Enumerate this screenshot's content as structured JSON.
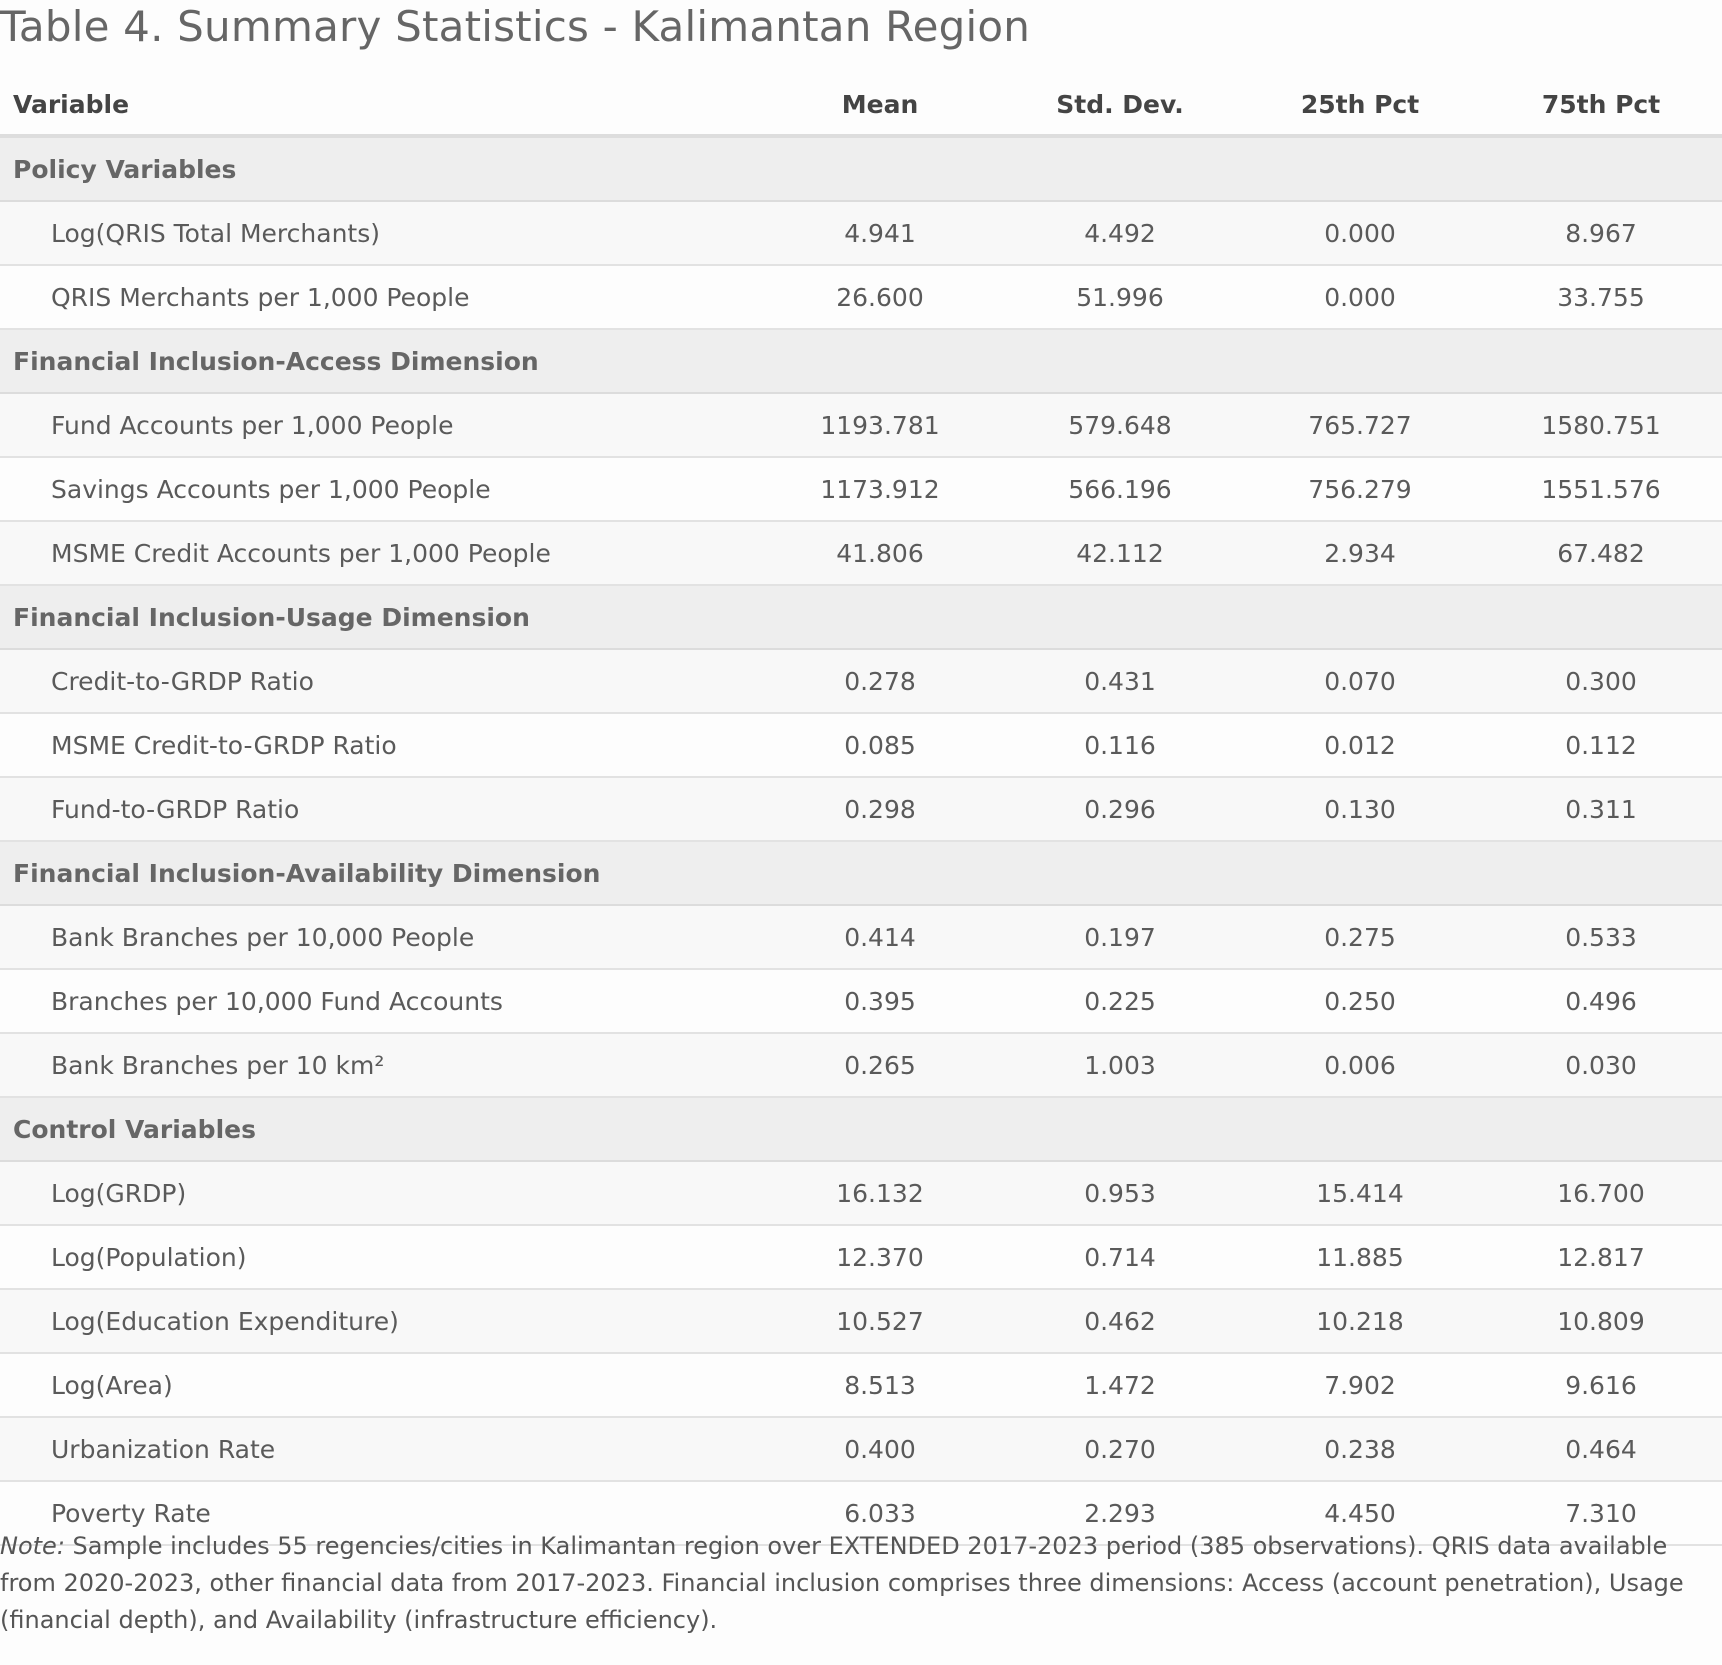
{
  "title": "Table 4. Summary Statistics - Kalimantan Region",
  "columns": [
    "Variable",
    "Mean",
    "Std. Dev.",
    "25th Pct",
    "75th Pct"
  ],
  "sections": [
    {
      "label": "Policy Variables",
      "rows": [
        {
          "name": "Log(QRIS Total Merchants)",
          "mean": "4.941",
          "sd": "4.492",
          "p25": "0.000",
          "p75": "8.967"
        },
        {
          "name": "QRIS Merchants per 1,000 People",
          "mean": "26.600",
          "sd": "51.996",
          "p25": "0.000",
          "p75": "33.755"
        }
      ]
    },
    {
      "label": "Financial Inclusion-Access Dimension",
      "rows": [
        {
          "name": "Fund Accounts per 1,000 People",
          "mean": "1193.781",
          "sd": "579.648",
          "p25": "765.727",
          "p75": "1580.751"
        },
        {
          "name": "Savings Accounts per 1,000 People",
          "mean": "1173.912",
          "sd": "566.196",
          "p25": "756.279",
          "p75": "1551.576"
        },
        {
          "name": "MSME Credit Accounts per 1,000 People",
          "mean": "41.806",
          "sd": "42.112",
          "p25": "2.934",
          "p75": "67.482"
        }
      ]
    },
    {
      "label": "Financial Inclusion-Usage Dimension",
      "rows": [
        {
          "name": "Credit-to-GRDP Ratio",
          "mean": "0.278",
          "sd": "0.431",
          "p25": "0.070",
          "p75": "0.300"
        },
        {
          "name": "MSME Credit-to-GRDP Ratio",
          "mean": "0.085",
          "sd": "0.116",
          "p25": "0.012",
          "p75": "0.112"
        },
        {
          "name": "Fund-to-GRDP Ratio",
          "mean": "0.298",
          "sd": "0.296",
          "p25": "0.130",
          "p75": "0.311"
        }
      ]
    },
    {
      "label": "Financial Inclusion-Availability Dimension",
      "rows": [
        {
          "name": "Bank Branches per 10,000 People",
          "mean": "0.414",
          "sd": "0.197",
          "p25": "0.275",
          "p75": "0.533"
        },
        {
          "name": "Branches per 10,000 Fund Accounts",
          "mean": "0.395",
          "sd": "0.225",
          "p25": "0.250",
          "p75": "0.496"
        },
        {
          "name": "Bank Branches per 10 km²",
          "mean": "0.265",
          "sd": "1.003",
          "p25": "0.006",
          "p75": "0.030"
        }
      ]
    },
    {
      "label": "Control Variables",
      "rows": [
        {
          "name": "Log(GRDP)",
          "mean": "16.132",
          "sd": "0.953",
          "p25": "15.414",
          "p75": "16.700"
        },
        {
          "name": "Log(Population)",
          "mean": "12.370",
          "sd": "0.714",
          "p25": "11.885",
          "p75": "12.817"
        },
        {
          "name": "Log(Education Expenditure)",
          "mean": "10.527",
          "sd": "0.462",
          "p25": "10.218",
          "p75": "10.809"
        },
        {
          "name": "Log(Area)",
          "mean": "8.513",
          "sd": "1.472",
          "p25": "7.902",
          "p75": "9.616"
        },
        {
          "name": "Urbanization Rate",
          "mean": "0.400",
          "sd": "0.270",
          "p25": "0.238",
          "p75": "0.464"
        },
        {
          "name": "Poverty Rate",
          "mean": "6.033",
          "sd": "2.293",
          "p25": "4.450",
          "p75": "7.310"
        }
      ]
    }
  ],
  "note": {
    "label": "Note:",
    "text": " Sample includes 55 regencies/cities in Kalimantan region over EXTENDED 2017-2023 period (385 observations). QRIS data available from 2020-2023, other financial data from 2017-2023. Financial inclusion comprises three dimensions: Access (account penetration), Usage (financial depth), and Availability (infrastructure efficiency)."
  }
}
